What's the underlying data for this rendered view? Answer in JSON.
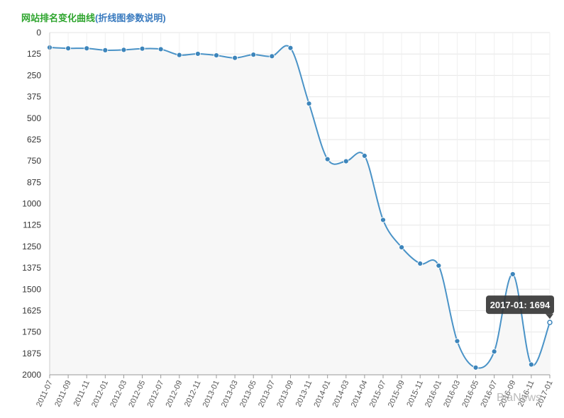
{
  "title": {
    "main": "网站排名变化曲线",
    "sub": "(折线图参数说明)"
  },
  "watermark": "BiaNews",
  "colors": {
    "line": "#4a93c7",
    "point": "#3d85bb",
    "plot_bg": "#f7f7f7",
    "grid": "#e6e6e6",
    "title_main": "#2ea52e",
    "title_sub": "#3a7bbf",
    "tooltip_bg": "#333333"
  },
  "tooltip": {
    "text": "2017-01: 1694",
    "index": 27
  },
  "chart_data": {
    "type": "line",
    "title": "网站排名变化曲线(折线图参数说明)",
    "xlabel": "",
    "ylabel": "",
    "y_inverted": true,
    "ylim": [
      0,
      2000
    ],
    "yticks": [
      "0",
      "125",
      "250",
      "375",
      "500",
      "625",
      "750",
      "875",
      "1000",
      "1125",
      "1250",
      "1375",
      "1500",
      "1625",
      "1750",
      "1875",
      "2000"
    ],
    "x": [
      "2011-07",
      "2011-09",
      "2011-11",
      "2012-01",
      "2012-03",
      "2012-05",
      "2012-07",
      "2012-09",
      "2012-11",
      "2013-01",
      "2013-03",
      "2013-05",
      "2013-07",
      "2013-09",
      "2013-11",
      "2014-01",
      "2014-03",
      "2014-04",
      "2015-07",
      "2015-09",
      "2015-11",
      "2016-01",
      "2016-03",
      "2016-05",
      "2016-07",
      "2016-09",
      "2016-11",
      "2017-01"
    ],
    "y": [
      87,
      92,
      92,
      103,
      101,
      94,
      97,
      131,
      124,
      133,
      148,
      129,
      138,
      90,
      415,
      740,
      752,
      720,
      1095,
      1255,
      1350,
      1362,
      1803,
      1958,
      1864,
      1412,
      1940,
      1694
    ],
    "grid": true,
    "area_fill": true
  }
}
